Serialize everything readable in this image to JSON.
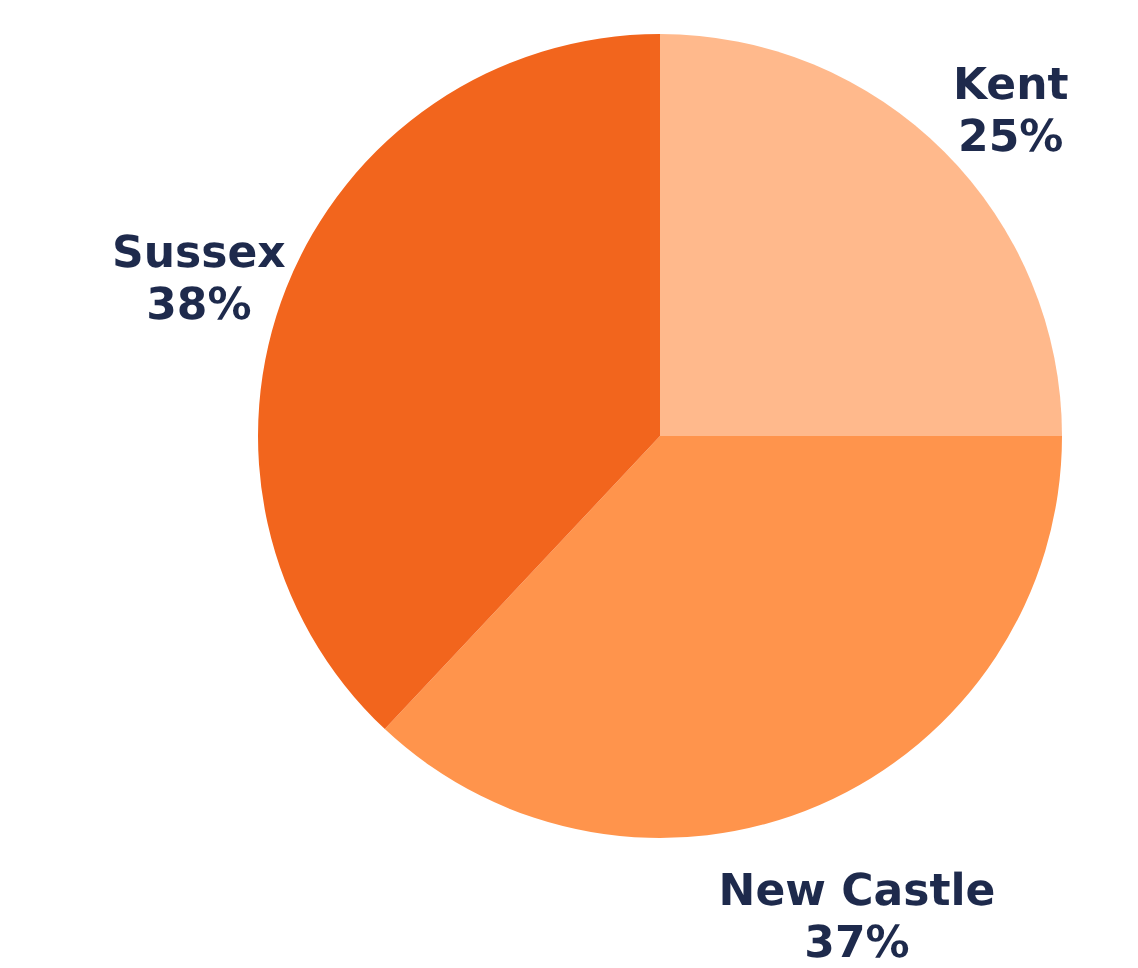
{
  "chart_data": {
    "type": "pie",
    "categories": [
      "Kent",
      "New Castle",
      "Sussex"
    ],
    "values": [
      25,
      37,
      38
    ],
    "value_labels": [
      "25%",
      "37%",
      "38%"
    ],
    "colors": [
      "#ffb98c",
      "#ff944c",
      "#f2651d"
    ],
    "legend": false
  }
}
